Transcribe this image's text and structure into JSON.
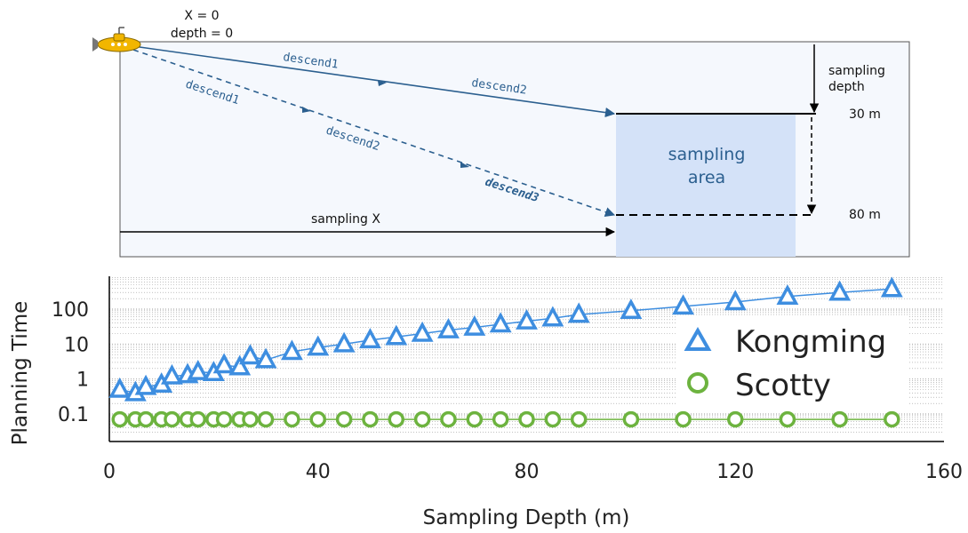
{
  "diagram": {
    "start_label_x": "X = 0",
    "start_label_depth": "depth = 0",
    "descend_upper_1": "descend1",
    "descend_upper_2": "descend2",
    "descend_lower_1": "descend1",
    "descend_lower_2": "descend2",
    "descend_lower_3": "descend3",
    "sampling_depth_label_1": "sampling",
    "sampling_depth_label_2": "depth",
    "depth_top": "30 m",
    "depth_bottom": "80 m",
    "area_label_1": "sampling",
    "area_label_2": "area",
    "sampling_x_label": "sampling X",
    "colors": {
      "water": "#f5f8fd",
      "area": "#d4e2f8",
      "route": "#2b5f8f",
      "submarine": "#f2b600"
    }
  },
  "chart_data": {
    "type": "scatter",
    "xlabel": "Sampling Depth (m)",
    "ylabel": "Planning Time",
    "xlim": [
      0,
      160
    ],
    "x_ticks": [
      "0",
      "40",
      "80",
      "120",
      "160"
    ],
    "y_scale": "log",
    "y_ticks": [
      "0.1",
      "1",
      "10",
      "100"
    ],
    "grid": "horizontal dotted",
    "legend_position": "right",
    "series": [
      {
        "name": "Kongming",
        "marker": "triangle",
        "color": "#3e8ee0",
        "x": [
          2,
          5,
          7,
          10,
          12,
          15,
          17,
          20,
          22,
          25,
          27,
          30,
          35,
          40,
          45,
          50,
          55,
          60,
          65,
          70,
          75,
          80,
          85,
          90,
          100,
          110,
          120,
          130,
          140,
          150
        ],
        "y": [
          0.5,
          0.4,
          0.6,
          0.7,
          1.2,
          1.3,
          1.6,
          1.5,
          2.5,
          2.2,
          4.5,
          3.5,
          6,
          8,
          10,
          13,
          16,
          20,
          25,
          30,
          37,
          45,
          55,
          70,
          90,
          120,
          160,
          230,
          300,
          380
        ]
      },
      {
        "name": "Scotty",
        "marker": "circle",
        "color": "#6db33f",
        "x": [
          2,
          5,
          7,
          10,
          12,
          15,
          17,
          20,
          22,
          25,
          27,
          30,
          35,
          40,
          45,
          50,
          55,
          60,
          65,
          70,
          75,
          80,
          85,
          90,
          100,
          110,
          120,
          130,
          140,
          150
        ],
        "y": [
          0.07,
          0.07,
          0.07,
          0.07,
          0.07,
          0.07,
          0.07,
          0.07,
          0.07,
          0.07,
          0.07,
          0.07,
          0.07,
          0.07,
          0.07,
          0.07,
          0.07,
          0.07,
          0.07,
          0.07,
          0.07,
          0.07,
          0.07,
          0.07,
          0.07,
          0.07,
          0.07,
          0.07,
          0.07,
          0.07
        ]
      }
    ]
  }
}
